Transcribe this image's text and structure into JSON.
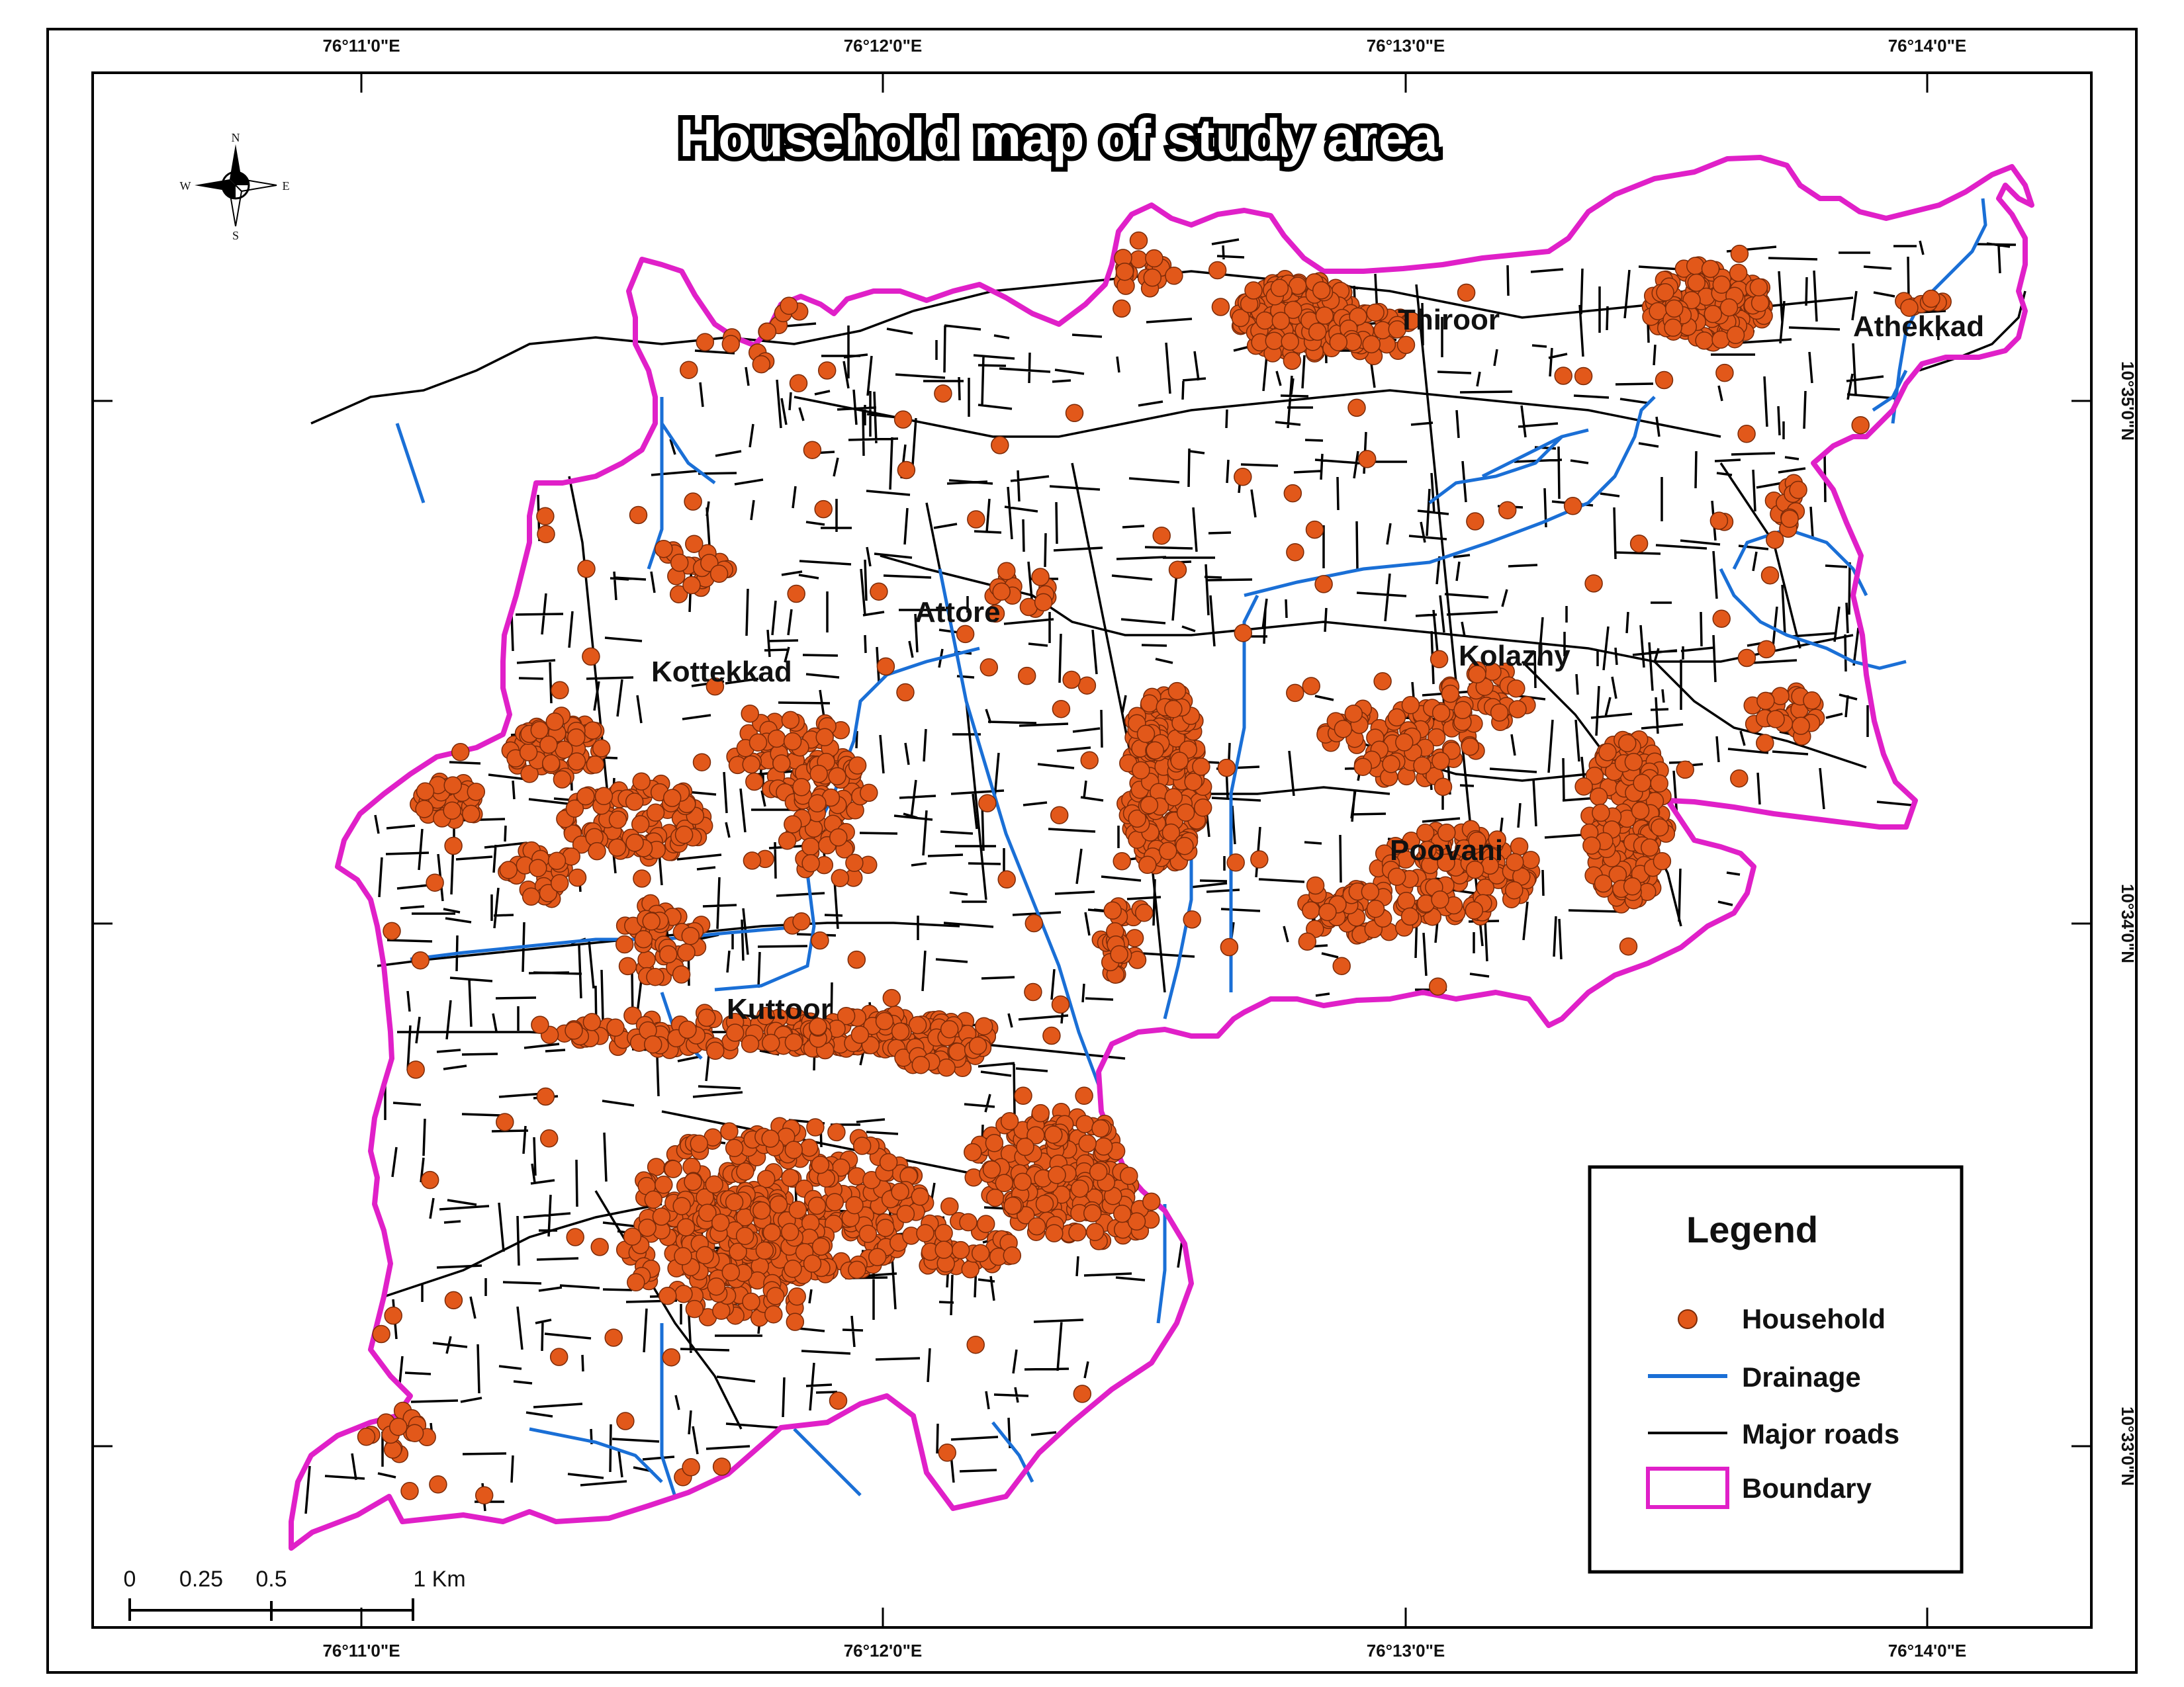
{
  "title": "Household map of study area",
  "graticule": {
    "top_labels": [
      "76°11'0\"E",
      "76°12'0\"E",
      "76°13'0\"E",
      "76°14'0\"E"
    ],
    "bottom_labels": [
      "76°11'0\"E",
      "76°12'0\"E",
      "76°13'0\"E",
      "76°14'0\"E"
    ],
    "right_labels": [
      "10°35'0\"N",
      "10°34'0\"N",
      "10°33'0\"N"
    ]
  },
  "compass": {
    "n": "N",
    "s": "S",
    "e": "E",
    "w": "W"
  },
  "places": [
    "Thiroor",
    "Athekkad",
    "Attore",
    "Kottekkad",
    "Kolazhy",
    "Poovani",
    "Kuttoor"
  ],
  "legend": {
    "title": "Legend",
    "household": "Household",
    "drainage": "Drainage",
    "roads": "Major roads",
    "boundary": "Boundary"
  },
  "scale_bar": {
    "ticks": [
      "0",
      "0.25",
      "0.5",
      "1 Km"
    ]
  },
  "colors": {
    "household": "#e2581a",
    "household_outline": "#7a2a08",
    "drainage": "#1a6fd6",
    "roads": "#000000",
    "boundary": "#e020c8"
  }
}
